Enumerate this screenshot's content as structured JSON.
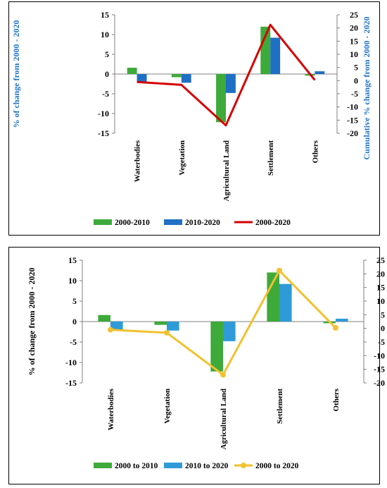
{
  "chart_data": [
    {
      "type": "bar",
      "categories": [
        "Waterbodies",
        "Vegetation",
        "Agricultural Land",
        "Settlement",
        "Others"
      ],
      "series": [
        {
          "name": "2000-2010",
          "type": "bar",
          "axis": "left",
          "color": "#3DAA3A",
          "values": [
            1.6,
            -0.8,
            -12.2,
            12.0,
            -0.4
          ]
        },
        {
          "name": "2010-2020",
          "type": "bar",
          "axis": "left",
          "color": "#1F6FC5",
          "values": [
            -2.0,
            -2.2,
            -4.8,
            9.2,
            0.7
          ]
        },
        {
          "name": "2000-2020",
          "type": "line",
          "axis": "right",
          "color": "#D40000",
          "values": [
            -0.5,
            -1.6,
            -17.0,
            21.2,
            0.2
          ]
        }
      ],
      "ylabel": "% of change from 2000 - 2020",
      "ylabel_right": "Cumulative % change from 2000 - 2020",
      "ylim": [
        -15,
        15
      ],
      "ylim_right": [
        -20,
        25
      ],
      "yticks": [
        "15",
        "10",
        "5",
        "0",
        "-5",
        "-10",
        "-15"
      ],
      "yticks_right": [
        "25",
        "20",
        "15",
        "10",
        "5",
        "0",
        "-5",
        "-10",
        "-15",
        "-20"
      ],
      "legend_position": "bottom",
      "grid": false
    },
    {
      "type": "bar",
      "categories": [
        "Waterbodies",
        "Vegetation",
        "Agricultural Land",
        "Settlement",
        "Others"
      ],
      "series": [
        {
          "name": "2000 to 2010",
          "type": "bar",
          "axis": "left",
          "color": "#3DAA3A",
          "values": [
            1.6,
            -0.8,
            -12.2,
            12.0,
            -0.4
          ]
        },
        {
          "name": "2010 to 2020",
          "type": "bar",
          "axis": "left",
          "color": "#2E9BD8",
          "values": [
            -2.0,
            -2.2,
            -4.8,
            9.2,
            0.7
          ]
        },
        {
          "name": "2000 to 2020",
          "type": "line",
          "axis": "right",
          "color": "#F2C12E",
          "values": [
            -0.5,
            -1.6,
            -17.0,
            21.2,
            0.2
          ]
        }
      ],
      "ylabel": "% of change from 2000 - 2020",
      "ylabel_right": "",
      "ylim": [
        -15,
        15
      ],
      "ylim_right": [
        -20,
        25
      ],
      "yticks": [
        "15",
        "10",
        "5",
        "0",
        "-5",
        "-10",
        "-15"
      ],
      "yticks_right": [
        "25",
        "20",
        "15",
        "10",
        "5",
        "0",
        "-5",
        "-10",
        "-15",
        "-20"
      ],
      "legend_position": "bottom",
      "grid": false
    }
  ]
}
